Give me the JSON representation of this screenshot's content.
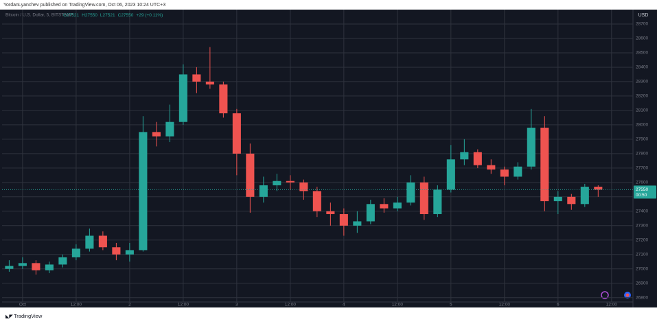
{
  "header": {
    "published": "YordanLyanchev published on TradingView.com, Oct 06, 2023 10:24 UTC+3"
  },
  "footer": {
    "brand": "TradingView"
  },
  "chart_data": {
    "type": "candlestick",
    "title": "Bitcoin / U.S. Dollar, 5, BITSTAMP",
    "ohlc_legend": [
      "O27521",
      "H27550",
      "L27521",
      "C27550",
      "+29 (+0.11%)"
    ],
    "currency": "USD",
    "last_price": 27550,
    "countdown": "00:50",
    "up_color": "#26a69a",
    "down_color": "#ef5350",
    "grid": true,
    "x": [
      -3,
      0,
      3,
      6,
      9,
      12,
      15,
      18,
      21,
      24,
      27,
      30,
      33,
      36,
      39,
      42,
      45,
      48,
      51,
      54,
      57,
      60,
      63,
      66,
      69,
      72,
      75,
      78,
      81,
      84,
      87,
      90,
      93,
      96,
      99,
      102,
      105,
      108,
      111,
      114,
      117,
      120,
      123,
      126,
      129
    ],
    "open": [
      27000,
      27020,
      27040,
      26990,
      27030,
      27080,
      27140,
      27230,
      27150,
      27100,
      27130,
      27950,
      27920,
      28020,
      28350,
      28300,
      28280,
      28080,
      27800,
      27500,
      27580,
      27610,
      27600,
      27540,
      27400,
      27380,
      27300,
      27330,
      27450,
      27420,
      27460,
      27600,
      27380,
      27550,
      27760,
      27810,
      27720,
      27690,
      27640,
      27710,
      27980,
      27470,
      27500,
      27450,
      27570
    ],
    "high": [
      27060,
      27080,
      27060,
      27050,
      27100,
      27170,
      27280,
      27260,
      27180,
      27180,
      28060,
      28020,
      28140,
      28420,
      28400,
      28540,
      28300,
      28110,
      27870,
      27640,
      27660,
      27650,
      27620,
      27570,
      27460,
      27420,
      27400,
      27480,
      27490,
      27500,
      27650,
      27640,
      27580,
      27860,
      27900,
      27830,
      27760,
      27710,
      27740,
      28110,
      28060,
      27540,
      27520,
      27590,
      27580
    ],
    "low": [
      26980,
      27000,
      26960,
      26970,
      27010,
      27060,
      27120,
      27130,
      27060,
      27050,
      27120,
      27850,
      27880,
      28000,
      28220,
      28250,
      28050,
      27650,
      27390,
      27460,
      27540,
      27550,
      27480,
      27360,
      27300,
      27230,
      27250,
      27310,
      27390,
      27400,
      27440,
      27340,
      27360,
      27530,
      27720,
      27700,
      27660,
      27580,
      27620,
      27690,
      27400,
      27380,
      27410,
      27430,
      27500
    ],
    "close": [
      27020,
      27040,
      26990,
      27030,
      27080,
      27140,
      27230,
      27150,
      27100,
      27130,
      27950,
      27920,
      28020,
      28350,
      28300,
      28280,
      28080,
      27800,
      27500,
      27580,
      27610,
      27600,
      27540,
      27400,
      27380,
      27300,
      27330,
      27450,
      27420,
      27460,
      27600,
      27380,
      27550,
      27760,
      27810,
      27720,
      27690,
      27640,
      27710,
      27980,
      27470,
      27500,
      27450,
      27570,
      27550
    ],
    "xlim": [
      -4.6,
      136.8
    ],
    "xticks": [
      {
        "value": 0,
        "label": "Oct"
      },
      {
        "value": 12,
        "label": "12:00"
      },
      {
        "value": 24,
        "label": "2"
      },
      {
        "value": 36,
        "label": "12:00"
      },
      {
        "value": 48,
        "label": "3"
      },
      {
        "value": 60,
        "label": "12:00"
      },
      {
        "value": 72,
        "label": "4"
      },
      {
        "value": 84,
        "label": "12:00"
      },
      {
        "value": 96,
        "label": "5"
      },
      {
        "value": 108,
        "label": "12:00"
      },
      {
        "value": 120,
        "label": "6"
      },
      {
        "value": 132,
        "label": "12:00"
      }
    ],
    "ylim": [
      26770,
      28800
    ],
    "yticks": [
      26800,
      26900,
      27000,
      27100,
      27200,
      27300,
      27400,
      27500,
      27600,
      27700,
      27800,
      27900,
      28000,
      28100,
      28200,
      28300,
      28400,
      28500,
      28600,
      28700
    ]
  }
}
